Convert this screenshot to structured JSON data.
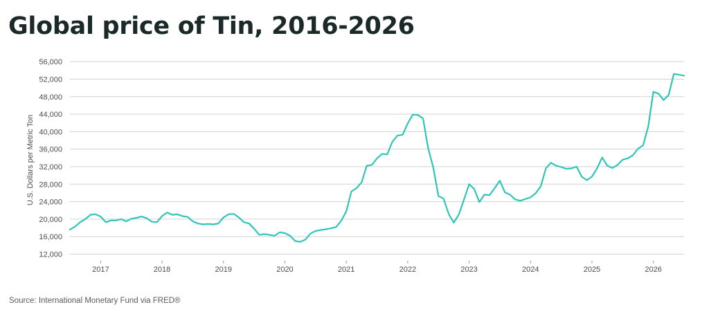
{
  "page": {
    "title": "Global price of Tin, 2016-2026",
    "source": "Source: International Monetary Fund via FRED®"
  },
  "chart_data": {
    "type": "line",
    "title": "Global price of Tin, 2016-2026",
    "xlabel": "",
    "ylabel": "U.S. Dollars per Metric Ton",
    "yticks": [
      12000,
      16000,
      20000,
      24000,
      28000,
      32000,
      36000,
      40000,
      44000,
      48000,
      52000,
      56000
    ],
    "ytick_labels": [
      "12,000",
      "16,000",
      "20,000",
      "24,000",
      "28,000",
      "32,000",
      "36,000",
      "40,000",
      "44,000",
      "48,000",
      "52,000",
      "56,000"
    ],
    "ylim": [
      10500,
      56500
    ],
    "xlim": [
      "2016-07",
      "2026-07"
    ],
    "xticks": [
      "2017",
      "2018",
      "2019",
      "2020",
      "2021",
      "2022",
      "2023",
      "2024",
      "2025",
      "2026"
    ],
    "grid": true,
    "line_color": "#2ec4b6",
    "grid_color": "#d0d0d0",
    "series": [
      {
        "name": "",
        "x": [
          "2016-07",
          "2016-08",
          "2016-09",
          "2016-10",
          "2016-11",
          "2016-12",
          "2017-01",
          "2017-02",
          "2017-03",
          "2017-04",
          "2017-05",
          "2017-06",
          "2017-07",
          "2017-08",
          "2017-09",
          "2017-10",
          "2017-11",
          "2017-12",
          "2018-01",
          "2018-02",
          "2018-03",
          "2018-04",
          "2018-05",
          "2018-06",
          "2018-07",
          "2018-08",
          "2018-09",
          "2018-10",
          "2018-11",
          "2018-12",
          "2019-01",
          "2019-02",
          "2019-03",
          "2019-04",
          "2019-05",
          "2019-06",
          "2019-07",
          "2019-08",
          "2019-09",
          "2019-10",
          "2019-11",
          "2019-12",
          "2020-01",
          "2020-02",
          "2020-03",
          "2020-04",
          "2020-05",
          "2020-06",
          "2020-07",
          "2020-08",
          "2020-09",
          "2020-10",
          "2020-11",
          "2020-12",
          "2021-01",
          "2021-02",
          "2021-03",
          "2021-04",
          "2021-05",
          "2021-06",
          "2021-07",
          "2021-08",
          "2021-09",
          "2021-10",
          "2021-11",
          "2021-12",
          "2022-01",
          "2022-02",
          "2022-03",
          "2022-04",
          "2022-05",
          "2022-06",
          "2022-07",
          "2022-08",
          "2022-09",
          "2022-10",
          "2022-11",
          "2022-12",
          "2023-01",
          "2023-02",
          "2023-03",
          "2023-04",
          "2023-05",
          "2023-06",
          "2023-07",
          "2023-08",
          "2023-09",
          "2023-10",
          "2023-11",
          "2023-12",
          "2024-01",
          "2024-02",
          "2024-03",
          "2024-04",
          "2024-05",
          "2024-06",
          "2024-07",
          "2024-08",
          "2024-09",
          "2024-10",
          "2024-11",
          "2024-12",
          "2025-01",
          "2025-02",
          "2025-03",
          "2025-04",
          "2025-05",
          "2025-06",
          "2025-07",
          "2025-08",
          "2025-09",
          "2025-10",
          "2025-11",
          "2025-12",
          "2026-01",
          "2026-02",
          "2026-03",
          "2026-04",
          "2026-05",
          "2026-06",
          "2026-07"
        ],
        "values": [
          17600,
          18300,
          19300,
          20000,
          21000,
          21100,
          20600,
          19300,
          19700,
          19700,
          20000,
          19500,
          20100,
          20300,
          20600,
          20200,
          19400,
          19300,
          20700,
          21500,
          21000,
          21100,
          20700,
          20500,
          19500,
          19000,
          18800,
          18900,
          18800,
          19000,
          20400,
          21100,
          21200,
          20400,
          19300,
          19000,
          17800,
          16400,
          16600,
          16400,
          16200,
          17000,
          16800,
          16200,
          15000,
          14800,
          15300,
          16700,
          17300,
          17500,
          17700,
          17900,
          18200,
          19600,
          21800,
          26300,
          27100,
          28400,
          32200,
          32400,
          33900,
          34900,
          34800,
          37700,
          39100,
          39300,
          41900,
          43900,
          43800,
          43000,
          36200,
          31800,
          25300,
          24700,
          21200,
          19200,
          21100,
          24500,
          28000,
          26900,
          23900,
          25600,
          25500,
          27100,
          28800,
          26100,
          25600,
          24500,
          24200,
          24600,
          25000,
          25900,
          27500,
          31600,
          32900,
          32200,
          31900,
          31500,
          31600,
          32000,
          29700,
          28900,
          29700,
          31600,
          34100,
          32200,
          31700,
          32400,
          33600,
          33900,
          34600,
          36100,
          36900,
          41200,
          49100,
          48700,
          47200,
          48400,
          53200,
          53000,
          52800
        ]
      }
    ]
  }
}
